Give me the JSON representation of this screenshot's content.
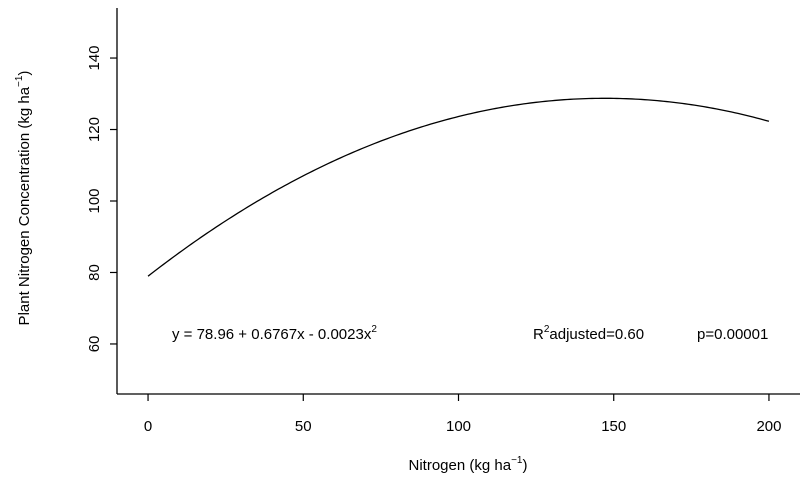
{
  "chart_data": {
    "type": "line",
    "x_label_main": "Nitrogen (kg  ha",
    "x_label_exp": "−1",
    "x_label_close": ")",
    "y_label_main": "Plant Nitrogen Concentration (kg  ha",
    "y_label_exp": "−1",
    "y_label_close": ")",
    "xlim": [
      -10,
      210
    ],
    "ylim": [
      46,
      154
    ],
    "x_ticks": [
      0,
      50,
      100,
      150,
      200
    ],
    "x_tick_labels": [
      "0",
      "50",
      "100",
      "150",
      "200"
    ],
    "y_ticks": [
      60,
      80,
      100,
      120,
      140
    ],
    "y_tick_labels": [
      "60",
      "80",
      "100",
      "120",
      "140"
    ],
    "model": {
      "intercept": 78.96,
      "linear": 0.6767,
      "quadratic": -0.0023,
      "x_min": 0,
      "x_max": 200
    },
    "annotations": {
      "equation_main": "y = 78.96 + 0.6767x - 0.0023x",
      "equation_exp": "2",
      "r2_prefix": "R",
      "r2_exp": "2",
      "r2_suffix": "adjusted=0.60",
      "p_value": "p=0.00001"
    },
    "grid": false,
    "legend": "none",
    "line_color": "#000000"
  }
}
